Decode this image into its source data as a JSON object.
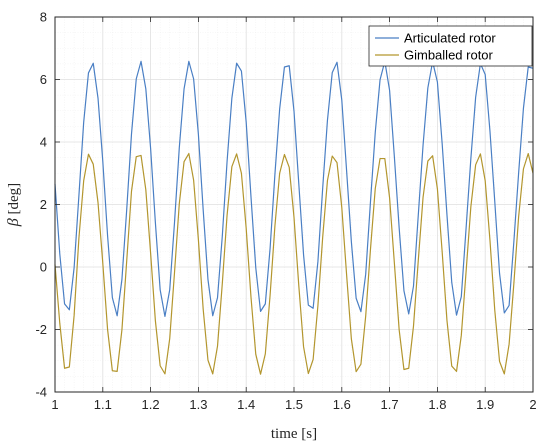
{
  "chart_data": {
    "type": "line",
    "title": "",
    "xlabel": "time [s]",
    "ylabel": {
      "symbol": "β",
      "unit": "[deg]"
    },
    "xlim": [
      1,
      2
    ],
    "ylim": [
      -4,
      8
    ],
    "xticks": [
      1,
      1.1,
      1.2,
      1.3,
      1.4,
      1.5,
      1.6,
      1.7,
      1.8,
      1.9,
      2
    ],
    "xtick_labels": [
      "1",
      "1.1",
      "1.2",
      "1.3",
      "1.4",
      "1.5",
      "1.6",
      "1.7",
      "1.8",
      "1.9",
      "2"
    ],
    "yticks": [
      -4,
      -2,
      0,
      2,
      4,
      6,
      8
    ],
    "ytick_labels": [
      "-4",
      "-2",
      "0",
      "2",
      "4",
      "6",
      "8"
    ],
    "grid": true,
    "minor_grid": true,
    "legend_position": "top-right",
    "series": [
      {
        "name": "Articulated rotor",
        "color": "#4a7fc4",
        "x": [
          1.0,
          1.01,
          1.02,
          1.03,
          1.04,
          1.05,
          1.06,
          1.07,
          1.08,
          1.09,
          1.1,
          1.11,
          1.12,
          1.13,
          1.14,
          1.15,
          1.16,
          1.17,
          1.18,
          1.19,
          1.2,
          1.21,
          1.22,
          1.23,
          1.24,
          1.25,
          1.26,
          1.27,
          1.28,
          1.29,
          1.3,
          1.31,
          1.32,
          1.33,
          1.34,
          1.35,
          1.36,
          1.37,
          1.38,
          1.39,
          1.4,
          1.41,
          1.42,
          1.43,
          1.44,
          1.45,
          1.46,
          1.47,
          1.48,
          1.49,
          1.5,
          1.51,
          1.52,
          1.53,
          1.54,
          1.55,
          1.56,
          1.57,
          1.58,
          1.59,
          1.6,
          1.61,
          1.62,
          1.63,
          1.64,
          1.65,
          1.66,
          1.67,
          1.68,
          1.69,
          1.7,
          1.71,
          1.72,
          1.73,
          1.74,
          1.75,
          1.76,
          1.77,
          1.78,
          1.79,
          1.8,
          1.81,
          1.82,
          1.83,
          1.84,
          1.85,
          1.86,
          1.87,
          1.88,
          1.89,
          1.9,
          1.91,
          1.92,
          1.93,
          1.94,
          1.95,
          1.96,
          1.97,
          1.98,
          1.99,
          2.0
        ],
        "y": [
          2.66,
          0.42,
          -1.18,
          -1.37,
          -0.02,
          2.28,
          4.63,
          6.21,
          6.52,
          5.4,
          3.38,
          1.0,
          -0.98,
          -1.56,
          -0.4,
          1.83,
          4.25,
          6.02,
          6.58,
          5.7,
          3.8,
          1.42,
          -0.73,
          -1.58,
          -0.73,
          1.42,
          3.81,
          5.7,
          6.58,
          6.02,
          4.24,
          1.83,
          -0.4,
          -1.56,
          -0.98,
          0.99,
          3.38,
          5.4,
          6.52,
          6.27,
          4.63,
          2.25,
          -0.02,
          -1.42,
          -1.18,
          0.6,
          2.95,
          5.06,
          6.4,
          6.44,
          4.99,
          2.67,
          0.39,
          -1.22,
          -1.32,
          0.17,
          2.52,
          4.7,
          6.22,
          6.55,
          5.34,
          3.09,
          0.81,
          -1.0,
          -1.43,
          -0.23,
          2.09,
          4.31,
          5.99,
          6.58,
          5.65,
          3.52,
          1.25,
          -0.76,
          -1.5,
          -0.61,
          1.66,
          3.9,
          5.73,
          6.57,
          5.92,
          3.94,
          1.67,
          -0.49,
          -1.54,
          -0.95,
          1.24,
          3.47,
          5.43,
          6.51,
          6.16,
          4.34,
          2.1,
          -0.2,
          -1.47,
          -1.23,
          0.82,
          3.02,
          5.08,
          6.4,
          6.36
        ]
      },
      {
        "name": "Gimballed rotor",
        "color": "#b3962e",
        "x": [
          1.0,
          1.01,
          1.02,
          1.03,
          1.04,
          1.05,
          1.06,
          1.07,
          1.08,
          1.09,
          1.1,
          1.11,
          1.12,
          1.13,
          1.14,
          1.15,
          1.16,
          1.17,
          1.18,
          1.19,
          1.2,
          1.21,
          1.22,
          1.23,
          1.24,
          1.25,
          1.26,
          1.27,
          1.28,
          1.29,
          1.3,
          1.31,
          1.32,
          1.33,
          1.34,
          1.35,
          1.36,
          1.37,
          1.38,
          1.39,
          1.4,
          1.41,
          1.42,
          1.43,
          1.44,
          1.45,
          1.46,
          1.47,
          1.48,
          1.49,
          1.5,
          1.51,
          1.52,
          1.53,
          1.54,
          1.55,
          1.56,
          1.57,
          1.58,
          1.59,
          1.6,
          1.61,
          1.62,
          1.63,
          1.64,
          1.65,
          1.66,
          1.67,
          1.68,
          1.69,
          1.7,
          1.71,
          1.72,
          1.73,
          1.74,
          1.75,
          1.76,
          1.77,
          1.78,
          1.79,
          1.8,
          1.81,
          1.82,
          1.83,
          1.84,
          1.85,
          1.86,
          1.87,
          1.88,
          1.89,
          1.9,
          1.91,
          1.92,
          1.93,
          1.94,
          1.95,
          1.96,
          1.97,
          1.98,
          1.99,
          2.0
        ],
        "y": [
          0.08,
          -1.8,
          -3.24,
          -3.2,
          -1.55,
          0.92,
          2.76,
          3.61,
          3.29,
          2.06,
          0.12,
          -2.0,
          -3.32,
          -3.34,
          -2.01,
          0.19,
          2.42,
          3.53,
          3.57,
          2.47,
          0.45,
          -1.72,
          -3.16,
          -3.42,
          -2.29,
          -0.18,
          2.02,
          3.37,
          3.63,
          2.78,
          0.87,
          -1.35,
          -2.98,
          -3.42,
          -2.53,
          -0.53,
          1.66,
          3.21,
          3.62,
          3.0,
          1.23,
          -0.96,
          -2.79,
          -3.43,
          -2.78,
          -0.9,
          1.3,
          3.0,
          3.6,
          3.19,
          1.59,
          -0.59,
          -2.55,
          -3.41,
          -2.96,
          -1.24,
          0.95,
          2.77,
          3.55,
          3.34,
          1.9,
          -0.24,
          -2.3,
          -3.35,
          -3.11,
          -1.57,
          0.57,
          2.51,
          3.47,
          3.47,
          2.21,
          0.12,
          -2.01,
          -3.28,
          -3.24,
          -1.89,
          0.21,
          2.23,
          3.39,
          3.56,
          2.5,
          0.48,
          -1.71,
          -3.17,
          -3.34,
          -2.19,
          -0.15,
          1.93,
          3.27,
          3.62,
          2.76,
          0.85,
          -1.38,
          -3.02,
          -3.42,
          -2.47,
          -0.52,
          1.62,
          3.14,
          3.63,
          3.0
        ]
      }
    ]
  }
}
